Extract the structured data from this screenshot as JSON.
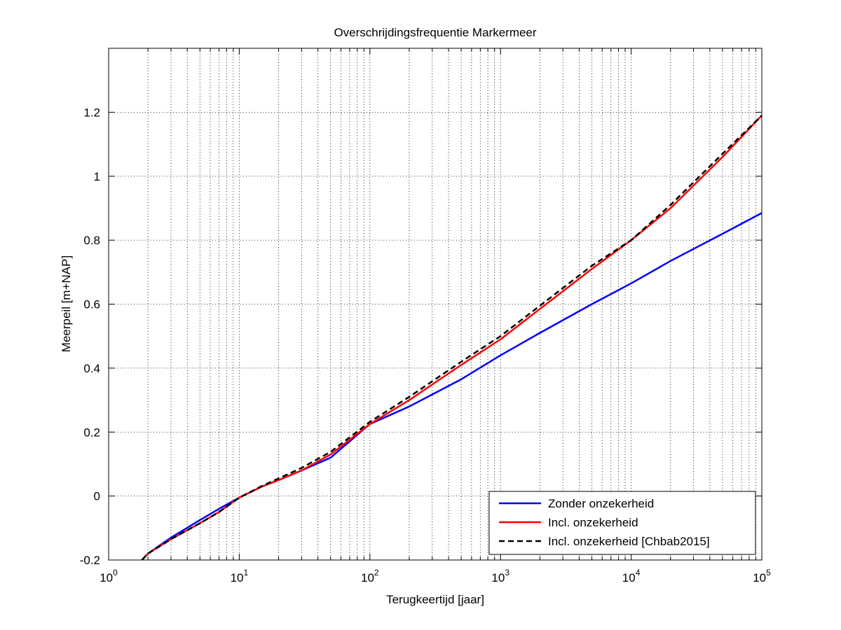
{
  "chart_data": {
    "type": "line",
    "title": "Overschrijdingsfrequentie Markermeer",
    "xlabel": "Terugkeertijd [jaar]",
    "ylabel": "Meerpeil [m+NAP]",
    "xscale": "log",
    "xlim": [
      1,
      100000
    ],
    "ylim": [
      -0.2,
      1.4
    ],
    "grid": true,
    "legend_position": "bottom-right",
    "x_ticks": [
      {
        "value": 1,
        "base": "10",
        "exp": "0"
      },
      {
        "value": 10,
        "base": "10",
        "exp": "1"
      },
      {
        "value": 100,
        "base": "10",
        "exp": "2"
      },
      {
        "value": 1000,
        "base": "10",
        "exp": "3"
      },
      {
        "value": 10000,
        "base": "10",
        "exp": "4"
      },
      {
        "value": 100000,
        "base": "10",
        "exp": "5"
      }
    ],
    "y_ticks": [
      {
        "value": -0.2,
        "label": "-0.2"
      },
      {
        "value": 0,
        "label": "0"
      },
      {
        "value": 0.2,
        "label": "0.2"
      },
      {
        "value": 0.4,
        "label": "0.4"
      },
      {
        "value": 0.6,
        "label": "0.6"
      },
      {
        "value": 0.8,
        "label": "0.8"
      },
      {
        "value": 1.0,
        "label": "1"
      },
      {
        "value": 1.2,
        "label": "1.2"
      }
    ],
    "series": [
      {
        "name": "Zonder onzekerheid",
        "color": "#0000ff",
        "dash": "solid",
        "x": [
          1.8,
          2,
          3,
          5,
          7,
          10,
          15,
          20,
          30,
          50,
          100,
          200,
          500,
          1000,
          2000,
          5000,
          10000,
          20000,
          50000,
          100000
        ],
        "y": [
          -0.2,
          -0.18,
          -0.13,
          -0.075,
          -0.04,
          -0.005,
          0.03,
          0.05,
          0.08,
          0.12,
          0.225,
          0.28,
          0.365,
          0.44,
          0.51,
          0.6,
          0.665,
          0.735,
          0.82,
          0.885
        ]
      },
      {
        "name": "Incl. onzekerheid",
        "color": "#ff0000",
        "dash": "solid",
        "x": [
          1.8,
          2,
          3,
          5,
          7,
          10,
          15,
          20,
          30,
          50,
          100,
          200,
          500,
          1000,
          2000,
          5000,
          10000,
          20000,
          50000,
          100000
        ],
        "y": [
          -0.2,
          -0.18,
          -0.135,
          -0.085,
          -0.05,
          -0.005,
          0.03,
          0.05,
          0.08,
          0.13,
          0.225,
          0.3,
          0.41,
          0.49,
          0.585,
          0.71,
          0.8,
          0.9,
          1.06,
          1.19
        ]
      },
      {
        "name": "Incl. onzekerheid [Chbab2015]",
        "color": "#000000",
        "dash": "dashed",
        "x": [
          1.8,
          2,
          3,
          5,
          7,
          10,
          15,
          20,
          30,
          50,
          100,
          200,
          500,
          1000,
          2000,
          5000,
          10000,
          20000,
          50000,
          100000
        ],
        "y": [
          -0.2,
          -0.18,
          -0.135,
          -0.085,
          -0.05,
          -0.005,
          0.032,
          0.055,
          0.088,
          0.138,
          0.232,
          0.31,
          0.42,
          0.5,
          0.595,
          0.72,
          0.8,
          0.91,
          1.07,
          1.19
        ]
      }
    ]
  }
}
